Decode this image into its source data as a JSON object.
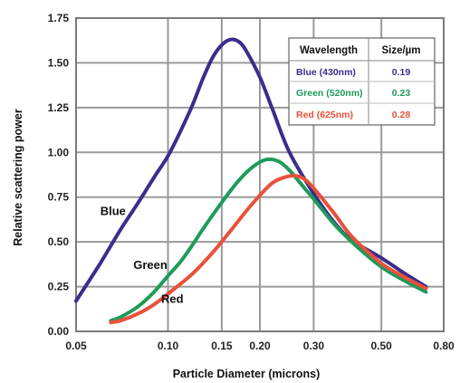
{
  "chart_data": {
    "type": "line",
    "title": "",
    "xlabel": "Particle Diameter (microns)",
    "ylabel": "Relative scattering power",
    "x_scale": "log",
    "xlim": [
      0.05,
      0.8
    ],
    "ylim": [
      0,
      1.75
    ],
    "grid": true,
    "x_ticks": [
      {
        "value": 0.05,
        "label": "0.05"
      },
      {
        "value": 0.1,
        "label": "0.10"
      },
      {
        "value": 0.15,
        "label": "0.15"
      },
      {
        "value": 0.2,
        "label": "0.20"
      },
      {
        "value": 0.3,
        "label": "0.30"
      },
      {
        "value": 0.5,
        "label": "0.50"
      },
      {
        "value": 0.8,
        "label": "0.80"
      }
    ],
    "y_ticks": [
      {
        "value": 0,
        "label": "0.00"
      },
      {
        "value": 0.25,
        "label": "0.25"
      },
      {
        "value": 0.5,
        "label": "0.50"
      },
      {
        "value": 0.75,
        "label": "0.75"
      },
      {
        "value": 1.0,
        "label": "1.00"
      },
      {
        "value": 1.25,
        "label": "1.25"
      },
      {
        "value": 1.5,
        "label": "1.50"
      },
      {
        "value": 1.75,
        "label": "1.75"
      }
    ],
    "series": [
      {
        "name": "Blue",
        "color": "#3b2d8c",
        "points": [
          [
            0.05,
            0.17
          ],
          [
            0.06,
            0.38
          ],
          [
            0.07,
            0.57
          ],
          [
            0.08,
            0.72
          ],
          [
            0.09,
            0.86
          ],
          [
            0.1,
            0.98
          ],
          [
            0.11,
            1.12
          ],
          [
            0.12,
            1.26
          ],
          [
            0.13,
            1.41
          ],
          [
            0.14,
            1.53
          ],
          [
            0.15,
            1.6
          ],
          [
            0.16,
            1.63
          ],
          [
            0.17,
            1.62
          ],
          [
            0.18,
            1.57
          ],
          [
            0.2,
            1.42
          ],
          [
            0.22,
            1.24
          ],
          [
            0.25,
            1.0
          ],
          [
            0.3,
            0.77
          ],
          [
            0.35,
            0.61
          ],
          [
            0.4,
            0.51
          ],
          [
            0.5,
            0.41
          ],
          [
            0.6,
            0.32
          ],
          [
            0.7,
            0.25
          ]
        ]
      },
      {
        "name": "Green",
        "color": "#1e9a5a",
        "points": [
          [
            0.065,
            0.06
          ],
          [
            0.07,
            0.08
          ],
          [
            0.08,
            0.14
          ],
          [
            0.09,
            0.22
          ],
          [
            0.1,
            0.31
          ],
          [
            0.11,
            0.39
          ],
          [
            0.12,
            0.48
          ],
          [
            0.13,
            0.57
          ],
          [
            0.15,
            0.72
          ],
          [
            0.17,
            0.84
          ],
          [
            0.19,
            0.92
          ],
          [
            0.21,
            0.96
          ],
          [
            0.23,
            0.95
          ],
          [
            0.25,
            0.9
          ],
          [
            0.28,
            0.8
          ],
          [
            0.3,
            0.74
          ],
          [
            0.35,
            0.6
          ],
          [
            0.4,
            0.5
          ],
          [
            0.5,
            0.36
          ],
          [
            0.6,
            0.28
          ],
          [
            0.7,
            0.22
          ]
        ]
      },
      {
        "name": "Red",
        "color": "#e8513a",
        "points": [
          [
            0.065,
            0.05
          ],
          [
            0.07,
            0.06
          ],
          [
            0.08,
            0.1
          ],
          [
            0.09,
            0.15
          ],
          [
            0.1,
            0.21
          ],
          [
            0.12,
            0.32
          ],
          [
            0.14,
            0.44
          ],
          [
            0.16,
            0.56
          ],
          [
            0.18,
            0.67
          ],
          [
            0.2,
            0.76
          ],
          [
            0.22,
            0.83
          ],
          [
            0.24,
            0.86
          ],
          [
            0.26,
            0.87
          ],
          [
            0.28,
            0.85
          ],
          [
            0.3,
            0.8
          ],
          [
            0.35,
            0.66
          ],
          [
            0.4,
            0.53
          ],
          [
            0.5,
            0.38
          ],
          [
            0.6,
            0.3
          ],
          [
            0.7,
            0.24
          ]
        ]
      }
    ],
    "curve_labels": [
      {
        "series": "Blue",
        "text": "Blue",
        "x": 0.06,
        "y": 0.65
      },
      {
        "series": "Green",
        "text": "Green",
        "x": 0.077,
        "y": 0.35
      },
      {
        "series": "Red",
        "text": "Red",
        "x": 0.095,
        "y": 0.16
      }
    ],
    "legend": {
      "position": "top-right",
      "headers": [
        "Wavelength",
        "Size/µm"
      ],
      "rows": [
        {
          "series": "Blue",
          "wavelength": "Blue (430nm)",
          "size": "0.19",
          "color": "#3b2d8c"
        },
        {
          "series": "Green",
          "wavelength": "Green (520nm)",
          "size": "0.23",
          "color": "#1e9a5a"
        },
        {
          "series": "Red",
          "wavelength": "Red (625nm)",
          "size": "0.28",
          "color": "#e8513a"
        }
      ]
    }
  }
}
